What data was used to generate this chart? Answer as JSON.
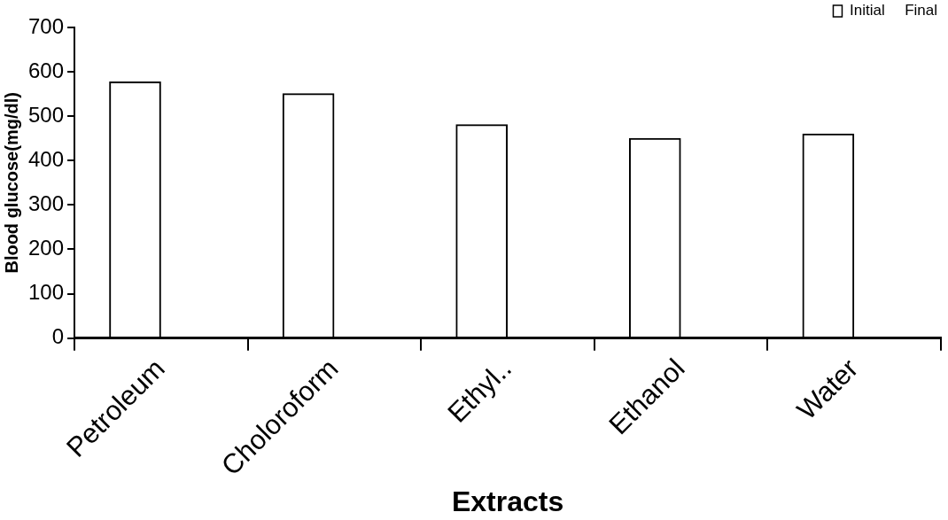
{
  "chart_data": {
    "type": "bar",
    "xlabel": "Extracts",
    "ylabel": "Blood glucose(mg/dl)",
    "categories": [
      "Petroleum",
      "Choloroform",
      "Ethyl..",
      "Ethanol",
      "Water"
    ],
    "series": [
      {
        "name": "Initial",
        "color": "#000000",
        "values": [
          578,
          552,
          482,
          451,
          461
        ]
      },
      {
        "name": "Final",
        "values": [
          null,
          null,
          null,
          null,
          null
        ]
      }
    ],
    "ylim": [
      0,
      700
    ],
    "yticks": [
      0,
      100,
      200,
      300,
      400,
      500,
      600,
      700
    ],
    "grid": false,
    "legend": "top right"
  }
}
